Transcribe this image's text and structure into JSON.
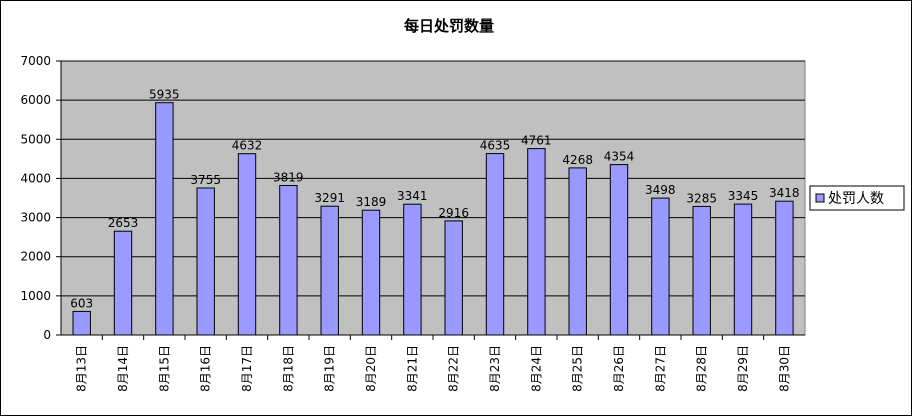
{
  "chart_data": {
    "type": "bar",
    "title": "每日处罚数量",
    "xlabel": "",
    "ylabel": "",
    "categories": [
      "8月13日",
      "8月14日",
      "8月15日",
      "8月16日",
      "8月17日",
      "8月18日",
      "8月19日",
      "8月20日",
      "8月21日",
      "8月22日",
      "8月23日",
      "8月24日",
      "8月25日",
      "8月26日",
      "8月27日",
      "8月28日",
      "8月29日",
      "8月30日"
    ],
    "series": [
      {
        "name": "处罚人数",
        "values": [
          603,
          2653,
          5935,
          3755,
          4632,
          3819,
          3291,
          3189,
          3341,
          2916,
          4635,
          4761,
          4268,
          4354,
          3498,
          3285,
          3345,
          3418
        ]
      }
    ],
    "ylim": [
      0,
      7000
    ],
    "yticks": [
      0,
      1000,
      2000,
      3000,
      4000,
      5000,
      6000,
      7000
    ],
    "grid": true,
    "legend_position": "right",
    "colors": {
      "bar_fill": "#9999ff",
      "bar_stroke": "#000000",
      "plot_background": "#c0c0c0",
      "gridline": "#000000"
    }
  }
}
